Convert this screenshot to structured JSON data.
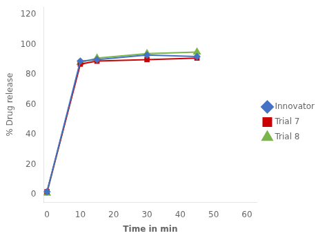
{
  "chart_data": {
    "type": "line",
    "x": [
      0,
      10,
      15,
      30,
      45
    ],
    "series": [
      {
        "name": "Innovator",
        "color": "#4472C4",
        "marker": "diamond",
        "values": [
          2,
          89,
          90,
          93,
          92
        ]
      },
      {
        "name": "Trial 7",
        "color": "#CC0000",
        "marker": "square",
        "values": [
          2,
          87,
          89,
          90,
          91
        ]
      },
      {
        "name": "Trial 8",
        "color": "#7AB648",
        "marker": "triangle",
        "values": [
          1,
          88,
          91,
          94,
          95
        ]
      }
    ],
    "x_label": "Time in min",
    "y_label": "% Drug release",
    "xlim": [
      -1,
      63
    ],
    "xticks": [
      0,
      10,
      20,
      30,
      40,
      50,
      60
    ],
    "ylim": [
      -5,
      125
    ],
    "yticks": [
      0,
      20,
      40,
      60,
      80,
      100,
      120
    ],
    "grid": false,
    "legend": "right"
  }
}
